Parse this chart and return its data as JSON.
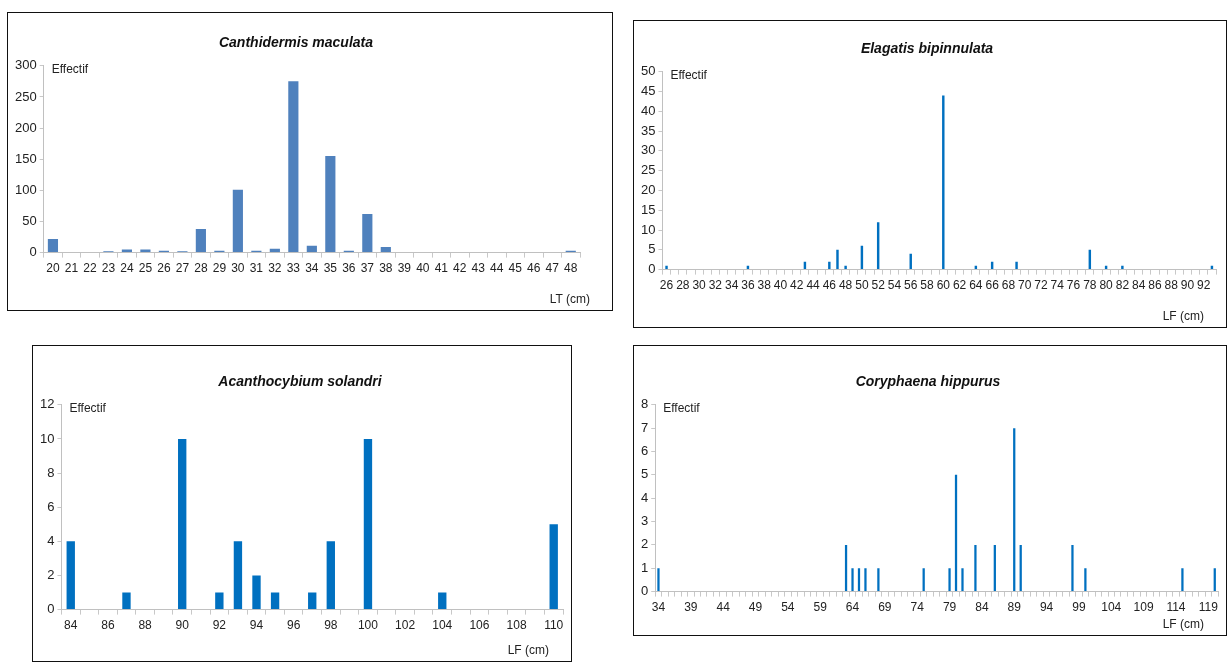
{
  "chart_data": [
    {
      "type": "bar",
      "title": "Canthidermis maculata",
      "ylabel": "Effectif",
      "xlabel": "LT (cm)",
      "color": "#4f81bd",
      "ylim": [
        0,
        300
      ],
      "yticks": [
        0,
        50,
        100,
        150,
        200,
        250,
        300
      ],
      "categories": [
        "20",
        "21",
        "22",
        "23",
        "24",
        "25",
        "26",
        "27",
        "28",
        "29",
        "30",
        "31",
        "32",
        "33",
        "34",
        "35",
        "36",
        "37",
        "38",
        "39",
        "40",
        "41",
        "42",
        "43",
        "44",
        "45",
        "46",
        "47",
        "48"
      ],
      "values": [
        22,
        0,
        0,
        2,
        5,
        5,
        3,
        2,
        38,
        3,
        101,
        3,
        6,
        275,
        11,
        155,
        3,
        62,
        9,
        0,
        0,
        0,
        0,
        0,
        0,
        0,
        0,
        0,
        3
      ]
    },
    {
      "type": "bar",
      "title": "Elagatis bipinnulata",
      "ylabel": "Effectif",
      "xlabel": "LF (cm)",
      "color": "#0070c0",
      "ylim": [
        0,
        50
      ],
      "yticks": [
        0,
        5,
        10,
        15,
        20,
        25,
        30,
        35,
        40,
        45,
        50
      ],
      "categories": [
        "26",
        null,
        "28",
        null,
        "30",
        null,
        "32",
        null,
        "34",
        null,
        "36",
        null,
        "38",
        null,
        "40",
        null,
        "42",
        null,
        "44",
        null,
        "46",
        null,
        "48",
        null,
        "50",
        null,
        "52",
        null,
        "54",
        null,
        "56",
        null,
        "58",
        null,
        "60",
        null,
        "62",
        null,
        "64",
        null,
        "66",
        null,
        "68",
        null,
        "70",
        null,
        "72",
        null,
        "74",
        null,
        "76",
        null,
        "78",
        null,
        "80",
        null,
        "82",
        null,
        "84",
        null,
        "86",
        null,
        "88",
        null,
        "90",
        null,
        "92",
        null
      ],
      "values": [
        1,
        0,
        0,
        0,
        0,
        0,
        0,
        0,
        0,
        0,
        1,
        0,
        0,
        0,
        0,
        0,
        0,
        2,
        0,
        0,
        2,
        5,
        1,
        0,
        6,
        0,
        12,
        0,
        0,
        0,
        4,
        0,
        0,
        0,
        44,
        0,
        0,
        0,
        1,
        0,
        2,
        0,
        0,
        2,
        0,
        0,
        0,
        0,
        0,
        0,
        0,
        0,
        5,
        0,
        1,
        0,
        1,
        0,
        0,
        0,
        0,
        0,
        0,
        0,
        0,
        0,
        0,
        1
      ]
    },
    {
      "type": "bar",
      "title": "Acanthocybium solandri",
      "ylabel": "Effectif",
      "xlabel": "LF (cm)",
      "color": "#0070c0",
      "ylim": [
        0,
        12
      ],
      "yticks": [
        0,
        2,
        4,
        6,
        8,
        10,
        12
      ],
      "categories": [
        "84",
        null,
        "86",
        null,
        "88",
        null,
        "90",
        null,
        "92",
        null,
        "94",
        null,
        "96",
        null,
        "98",
        null,
        "100",
        null,
        "102",
        null,
        "104",
        null,
        "106",
        null,
        "108",
        null,
        "110"
      ],
      "values": [
        4,
        0,
        0,
        1,
        0,
        0,
        10,
        0,
        1,
        4,
        2,
        1,
        0,
        1,
        4,
        0,
        10,
        0,
        0,
        0,
        1,
        0,
        0,
        0,
        0,
        0,
        5
      ]
    },
    {
      "type": "bar",
      "title": "Coryphaena hippurus",
      "ylabel": "Effectif",
      "xlabel": "LF (cm)",
      "color": "#0070c0",
      "ylim": [
        0,
        8
      ],
      "yticks": [
        0,
        1,
        2,
        3,
        4,
        5,
        6,
        7,
        8
      ],
      "categories": [
        "34",
        null,
        null,
        null,
        null,
        "39",
        null,
        null,
        null,
        null,
        "44",
        null,
        null,
        null,
        null,
        "49",
        null,
        null,
        null,
        null,
        "54",
        null,
        null,
        null,
        null,
        "59",
        null,
        null,
        null,
        null,
        "64",
        null,
        null,
        null,
        null,
        "69",
        null,
        null,
        null,
        null,
        "74",
        null,
        null,
        null,
        null,
        "79",
        null,
        null,
        null,
        null,
        "84",
        null,
        null,
        null,
        null,
        "89",
        null,
        null,
        null,
        null,
        "94",
        null,
        null,
        null,
        null,
        "99",
        null,
        null,
        null,
        null,
        "104",
        null,
        null,
        null,
        null,
        "109",
        null,
        null,
        null,
        null,
        "114",
        null,
        null,
        null,
        null,
        "119",
        null
      ],
      "values": [
        1,
        0,
        0,
        0,
        0,
        0,
        0,
        0,
        0,
        0,
        0,
        0,
        0,
        0,
        0,
        0,
        0,
        0,
        0,
        0,
        0,
        0,
        0,
        0,
        0,
        0,
        0,
        0,
        0,
        2,
        1,
        1,
        1,
        0,
        1,
        0,
        0,
        0,
        0,
        0,
        0,
        1,
        0,
        0,
        0,
        1,
        5,
        1,
        0,
        2,
        0,
        0,
        2,
        0,
        0,
        7,
        2,
        0,
        0,
        0,
        0,
        0,
        0,
        0,
        2,
        0,
        1,
        0,
        0,
        0,
        0,
        0,
        0,
        0,
        0,
        0,
        0,
        0,
        0,
        0,
        0,
        1,
        0,
        0,
        0,
        0,
        1
      ]
    }
  ]
}
